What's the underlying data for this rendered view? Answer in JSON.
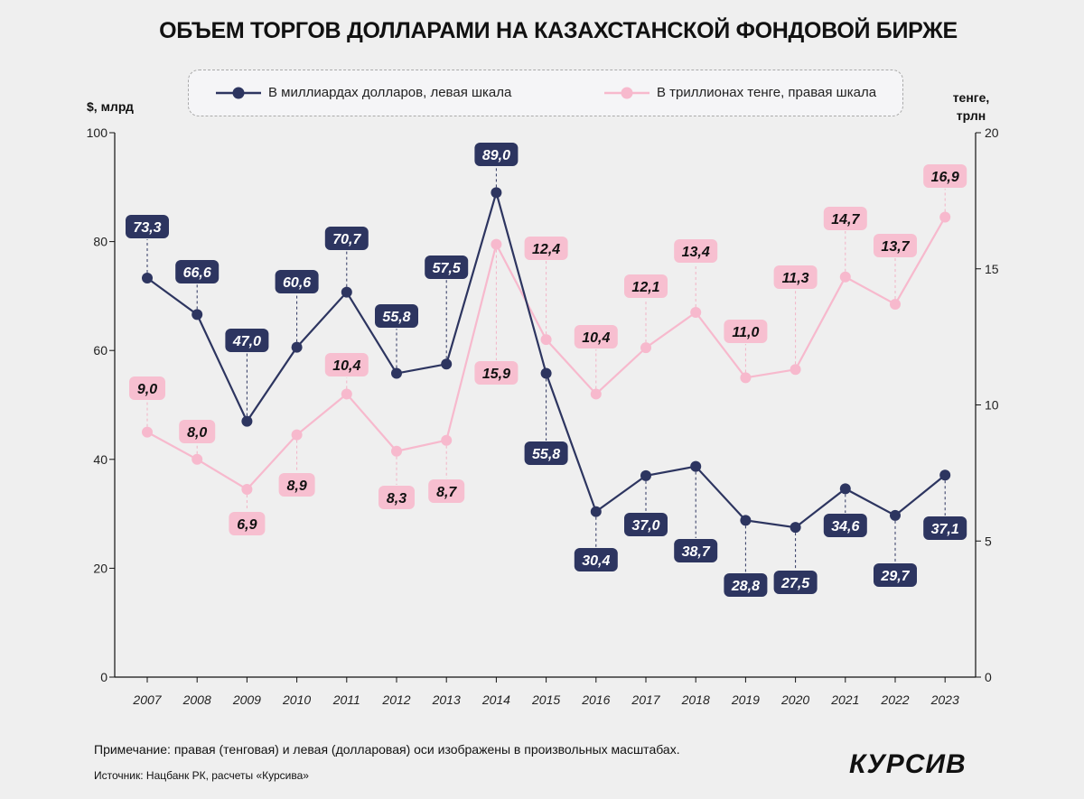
{
  "chart_data": {
    "type": "line",
    "title": "ОБЪЕМ ТОРГОВ ДОЛЛАРАМИ НА КАЗАХСТАНСКОЙ ФОНДОВОЙ БИРЖЕ",
    "ylabel_left": "$, млрд",
    "ylabel_right": "тенге, трлн",
    "categories": [
      "2007",
      "2008",
      "2009",
      "2010",
      "2011",
      "2012",
      "2013",
      "2014",
      "2015",
      "2016",
      "2017",
      "2018",
      "2019",
      "2020",
      "2021",
      "2022",
      "2023"
    ],
    "ylim_left": [
      0,
      100
    ],
    "yticks_left": [
      0,
      20,
      40,
      60,
      80,
      100
    ],
    "ylim_right": [
      0,
      20
    ],
    "yticks_right": [
      0,
      5,
      10,
      15,
      20
    ],
    "grid": false,
    "legend": "top",
    "series": [
      {
        "name": "В миллиардах долларов, левая шкала",
        "axis": "left",
        "color": "#2d3560",
        "values": [
          73.3,
          66.6,
          47.0,
          60.6,
          70.7,
          55.8,
          57.5,
          89.0,
          55.8,
          30.4,
          37.0,
          38.7,
          28.8,
          27.5,
          34.6,
          29.7,
          37.1
        ],
        "labels": [
          "73,3",
          "66,6",
          "47,0",
          "60,6",
          "70,7",
          "55,8",
          "57,5",
          "89,0",
          "55,8",
          "30,4",
          "37,0",
          "38,7",
          "28,8",
          "27,5",
          "34,6",
          "29,7",
          "37,1"
        ]
      },
      {
        "name": "В триллионах тенге, правая шкала",
        "axis": "right",
        "color": "#f7b9cd",
        "values": [
          9.0,
          8.0,
          6.9,
          8.9,
          10.4,
          8.3,
          8.7,
          15.9,
          12.4,
          10.4,
          12.1,
          13.4,
          11.0,
          11.3,
          14.7,
          13.7,
          16.9
        ],
        "labels": [
          "9,0",
          "8,0",
          "6,9",
          "8,9",
          "10,4",
          "8,3",
          "8,7",
          "15,9",
          "12,4",
          "10,4",
          "12,1",
          "13,4",
          "11,0",
          "11,3",
          "14,7",
          "13,7",
          "16,9"
        ]
      }
    ]
  },
  "note": "Примечание: правая (тенговая) и левая (долларовая) оси изображены в произвольных масштабах.",
  "source": "Источник: Нацбанк РК, расчеты «Курсива»",
  "logo": "КУРСИВ"
}
